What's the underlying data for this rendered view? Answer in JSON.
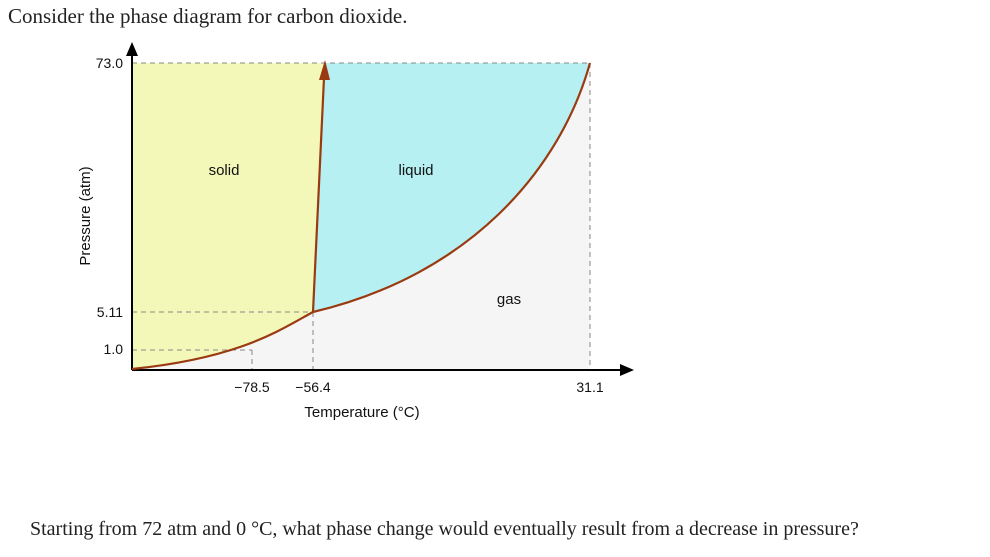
{
  "intro_text": "Consider the phase diagram for carbon dioxide.",
  "question_text": "Starting from 72 atm and 0 °C, what phase change would eventually result from a decrease in pressure?",
  "diagram": {
    "y_axis_label": "Pressure (atm)",
    "x_axis_label": "Temperature (°C)",
    "y_ticks": [
      "73.0",
      "5.11",
      "1.0"
    ],
    "x_ticks": [
      "−78.5",
      "−56.4",
      "31.1"
    ],
    "regions": {
      "solid": "solid",
      "liquid": "liquid",
      "gas": "gas"
    },
    "colors": {
      "solid": "#f3f8b8",
      "liquid": "#b6f0f2",
      "gas": "#f5f5f5",
      "curve": "#9a3a10",
      "dashed": "#888888"
    }
  }
}
